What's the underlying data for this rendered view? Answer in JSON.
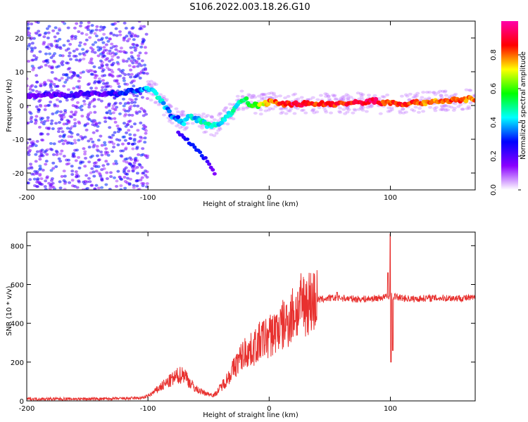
{
  "title": "S106.2022.003.18.26.G10",
  "chart_data": [
    {
      "type": "heatmap",
      "xlabel": "Height of straight line (km)",
      "ylabel": "Frequency (Hz)",
      "xlim": [
        -200,
        170
      ],
      "ylim": [
        -25,
        25
      ],
      "x_ticks": [
        -200,
        -100,
        0,
        100
      ],
      "y_ticks": [
        -20,
        -10,
        0,
        10,
        20
      ],
      "colorbar": {
        "label": "Normalized spectral amplitude",
        "range": [
          0,
          1
        ],
        "ticks": [
          "0.0",
          "0.2",
          "0.4",
          "0.6",
          "0.8"
        ],
        "colors": [
          "#ffffff",
          "#8a00ff",
          "#0000ff",
          "#00ffff",
          "#00ff00",
          "#ffff00",
          "#ff0000",
          "#ff00aa"
        ]
      },
      "ridge": {
        "name": "dominant frequency",
        "x": [
          -200,
          -185,
          -170,
          -155,
          -140,
          -125,
          -110,
          -100,
          -95,
          -90,
          -85,
          -80,
          -75,
          -70,
          -65,
          -60,
          -55,
          -50,
          -45,
          -40,
          -35,
          -30,
          -25,
          -20,
          -15,
          -10,
          -5,
          0,
          10,
          20,
          40,
          60,
          80,
          88,
          92,
          96,
          110,
          130,
          150,
          170
        ],
        "y": [
          3,
          3,
          3,
          3.5,
          3.5,
          3.5,
          4.5,
          5,
          4,
          2,
          -1,
          -3,
          -4,
          -5,
          -3,
          -4,
          -5,
          -6,
          -6,
          -5,
          -3,
          -2,
          1,
          2,
          0,
          0,
          0.5,
          1,
          0.5,
          0.5,
          0.5,
          0.5,
          1,
          1.5,
          0.5,
          1,
          0.5,
          1,
          1.5,
          2
        ],
        "amplitude": [
          0.15,
          0.2,
          0.2,
          0.2,
          0.2,
          0.25,
          0.3,
          0.4,
          0.45,
          0.45,
          0.35,
          0.35,
          0.35,
          0.4,
          0.45,
          0.4,
          0.45,
          0.45,
          0.45,
          0.4,
          0.45,
          0.45,
          0.45,
          0.5,
          0.55,
          0.6,
          0.7,
          0.8,
          0.85,
          0.9,
          0.85,
          0.85,
          0.9,
          0.95,
          0.85,
          0.85,
          0.85,
          0.8,
          0.8,
          0.8
        ]
      },
      "branch": {
        "name": "lower branch",
        "x": [
          -75,
          -70,
          -65,
          -60,
          -55,
          -50,
          -45
        ],
        "y": [
          -8,
          -10,
          -11,
          -13,
          -15,
          -17,
          -20
        ],
        "amplitude": [
          0.2,
          0.25,
          0.3,
          0.3,
          0.3,
          0.2,
          0.15
        ]
      }
    },
    {
      "type": "line",
      "xlabel": "Height of straight line (km)",
      "ylabel": "SNR (10 * v/v)",
      "xlim": [
        -200,
        170
      ],
      "ylim": [
        0,
        870
      ],
      "x_ticks": [
        -200,
        -100,
        0,
        100
      ],
      "y_ticks": [
        0,
        200,
        400,
        600,
        800
      ],
      "color": "#e8312f",
      "series": [
        {
          "x": [
            -200,
            -180,
            -160,
            -140,
            -120,
            -105,
            -100,
            -95,
            -90,
            -85,
            -80,
            -75,
            -70,
            -65,
            -60,
            -55,
            -50,
            -45,
            -40,
            -35,
            -30,
            -25,
            -20,
            -15,
            -10,
            -5,
            0,
            5,
            10,
            15,
            20,
            25,
            30,
            40,
            50,
            60,
            70,
            80,
            90,
            100,
            105,
            110,
            120,
            130,
            140,
            150,
            160,
            170
          ],
          "y": [
            10,
            10,
            10,
            10,
            12,
            15,
            25,
            45,
            70,
            90,
            110,
            130,
            140,
            90,
            60,
            45,
            35,
            30,
            70,
            110,
            160,
            210,
            250,
            260,
            290,
            320,
            330,
            360,
            380,
            410,
            450,
            480,
            510,
            520,
            530,
            530,
            525,
            525,
            530,
            540,
            535,
            530,
            525,
            530,
            530,
            530,
            530,
            530
          ]
        }
      ],
      "spikes": [
        {
          "x": 56,
          "y": 560
        },
        {
          "x": 98,
          "y": 660
        },
        {
          "x": 100,
          "y": 860
        },
        {
          "x": 100.5,
          "y": 200
        },
        {
          "x": 102,
          "y": 260
        }
      ]
    }
  ]
}
